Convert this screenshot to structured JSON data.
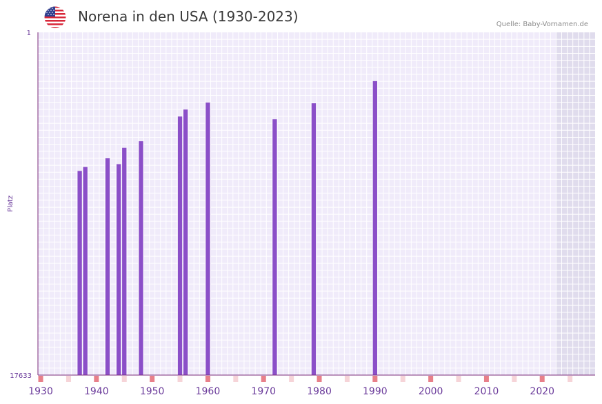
{
  "header": {
    "title": "Norena in den USA (1930-2023)",
    "source": "Quelle: Baby-Vornamen.de",
    "flag_icon": "usa-flag-icon"
  },
  "colors": {
    "bar": "#8b4fc8",
    "axis": "#7a2a7a",
    "tick_label": "#6a3a9a",
    "plot_bg": "#f0ebfa",
    "future_bg": "#e0dced",
    "grid": "#ffffff",
    "decade_marker": "#e8808a",
    "half_decade_marker": "#f6d4d8"
  },
  "chart_data": {
    "type": "bar",
    "title": "Norena in den USA (1930-2023)",
    "xlabel": "",
    "ylabel": "Platz",
    "y_inverted": true,
    "ylim": [
      1,
      17633
    ],
    "y_tick_labels": [
      "1",
      "17633"
    ],
    "xlim": [
      1929.5,
      2029.5
    ],
    "x_tick_labels": [
      "1930",
      "1940",
      "1950",
      "1960",
      "1970",
      "1980",
      "1990",
      "2000",
      "2010",
      "2020"
    ],
    "shaded_from_year": 2023,
    "series": [
      {
        "name": "Platz",
        "points": [
          {
            "year": 1937,
            "rank": 7130
          },
          {
            "year": 1938,
            "rank": 6930
          },
          {
            "year": 1942,
            "rank": 6480
          },
          {
            "year": 1944,
            "rank": 6780
          },
          {
            "year": 1945,
            "rank": 5940
          },
          {
            "year": 1948,
            "rank": 5600
          },
          {
            "year": 1955,
            "rank": 4330
          },
          {
            "year": 1956,
            "rank": 3970
          },
          {
            "year": 1960,
            "rank": 3610
          },
          {
            "year": 1972,
            "rank": 4470
          },
          {
            "year": 1979,
            "rank": 3650
          },
          {
            "year": 1990,
            "rank": 2510
          }
        ]
      }
    ]
  }
}
